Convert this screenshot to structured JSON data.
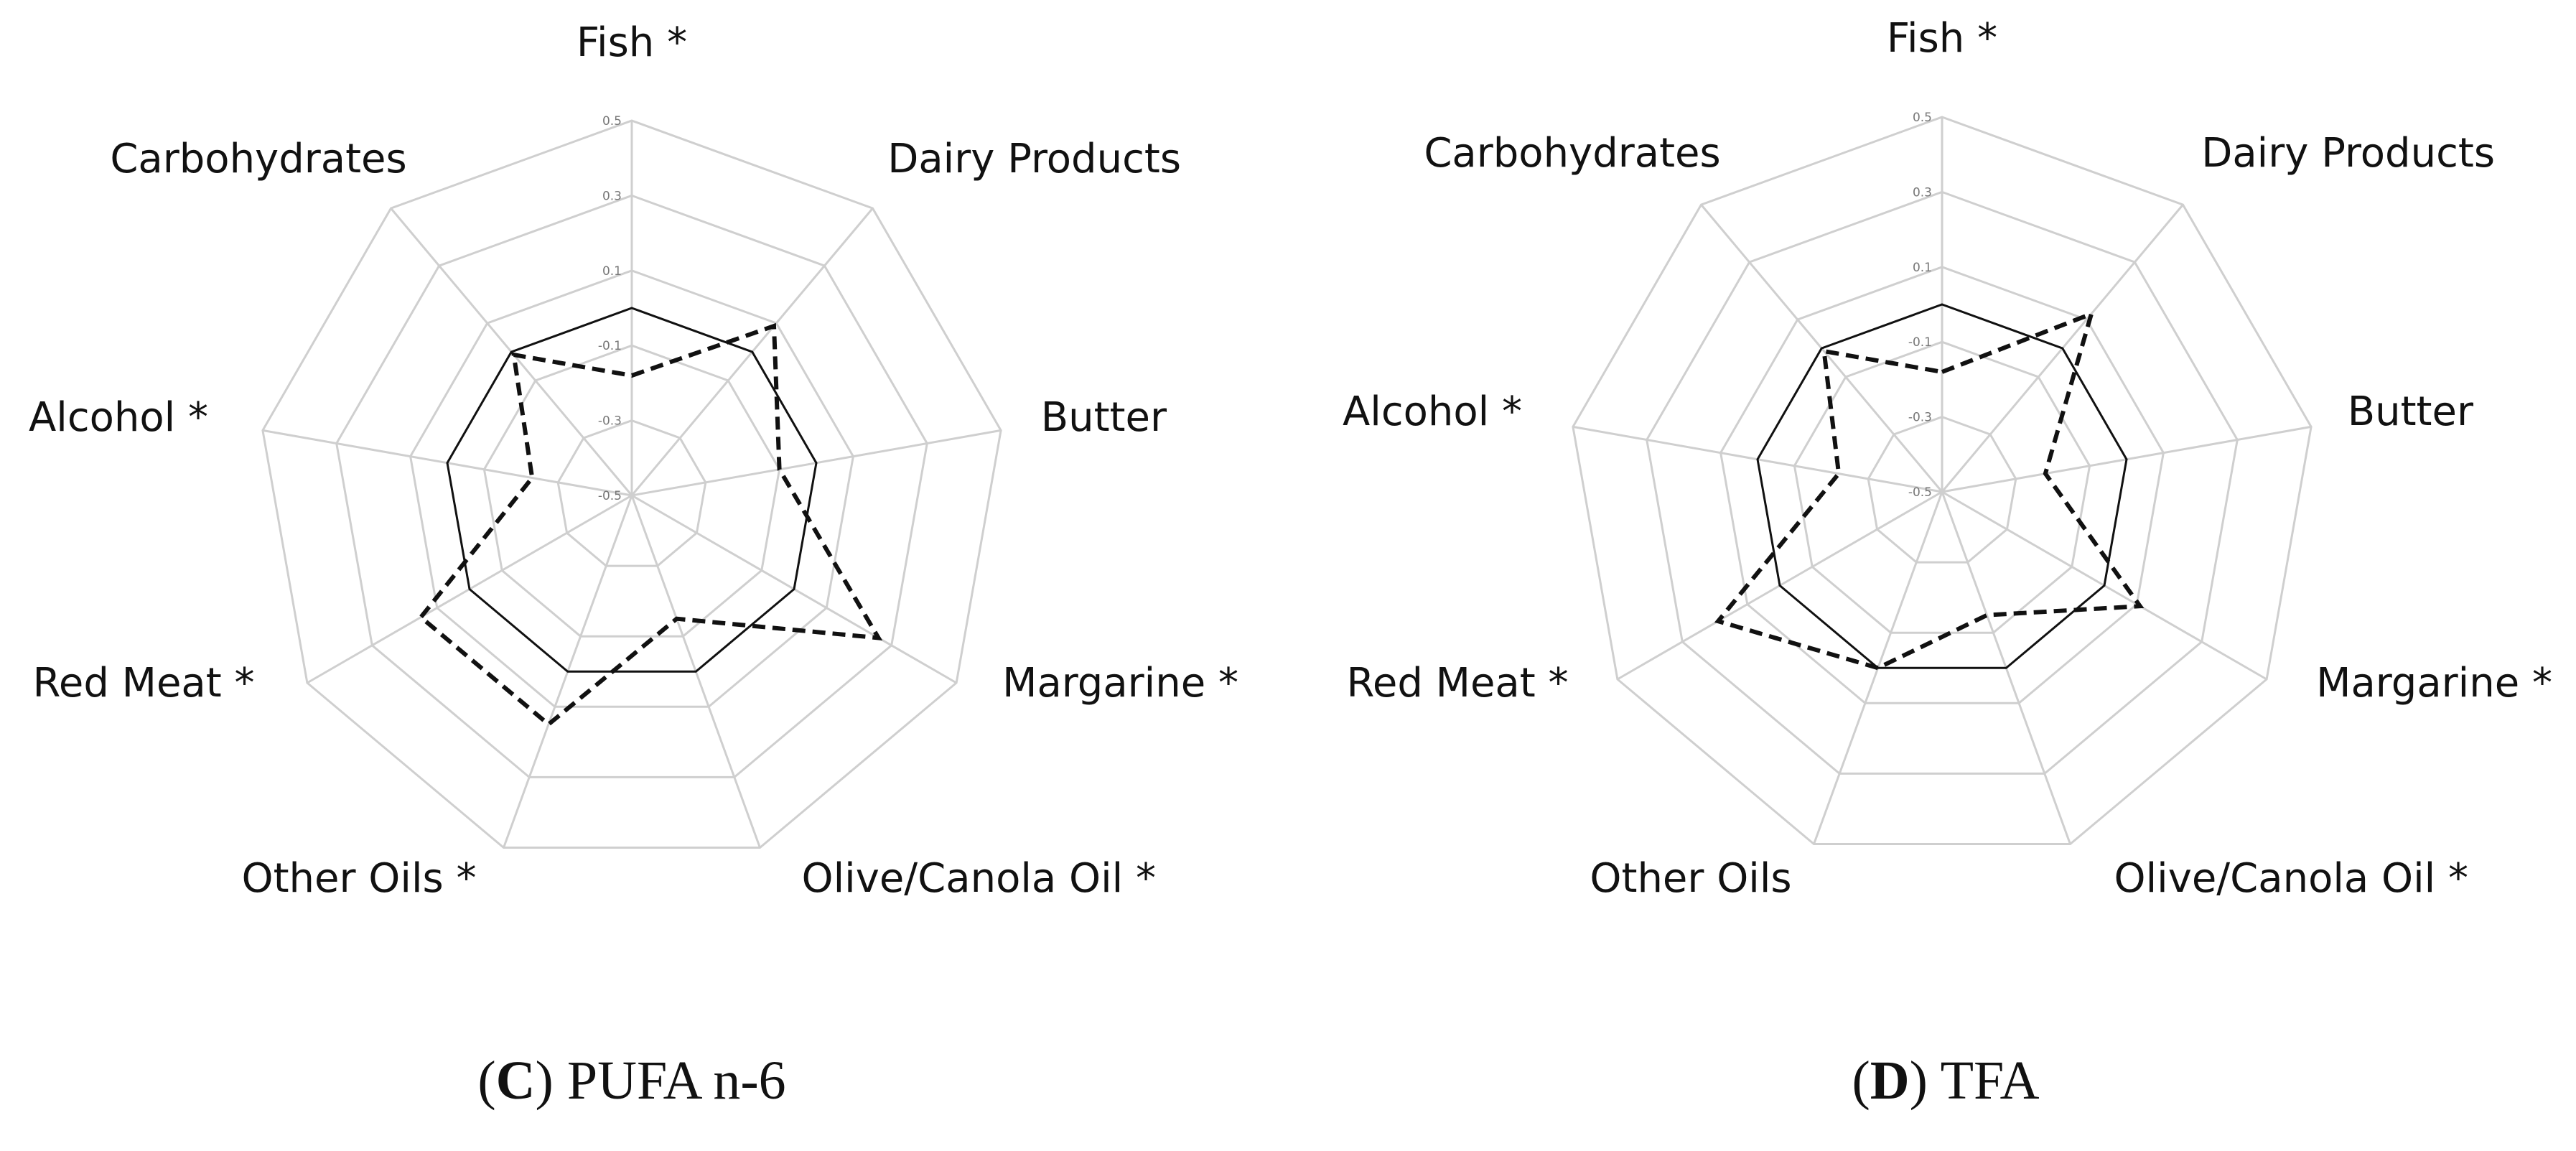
{
  "chart_data": [
    {
      "type": "radar",
      "panel_letter": "C",
      "panel_title": "PUFA n-6",
      "axes": [
        "Fish *",
        "Dairy Products",
        "Butter",
        "Margarine *",
        "Olive/Canola Oil *",
        "Other Oils *",
        "Red Meat *",
        "Alcohol *",
        "Carbohydrates"
      ],
      "rlim": [
        -0.5,
        0.5
      ],
      "ticks": [
        0.5,
        0.3,
        0.1,
        -0.1,
        -0.3,
        -0.5
      ],
      "tick_labels": [
        "0.5",
        "0.3",
        "0.1",
        "-0.1",
        "-0.3",
        "-0.5"
      ],
      "grid": true,
      "series": [
        {
          "style": "solid",
          "values": [
            0.0,
            0.0,
            0.0,
            0.0,
            0.0,
            0.0,
            0.0,
            0.0,
            0.0
          ]
        },
        {
          "style": "dashed",
          "values": [
            -0.18,
            0.09,
            -0.1,
            0.26,
            -0.15,
            0.15,
            0.15,
            -0.23,
            -0.01
          ]
        }
      ]
    },
    {
      "type": "radar",
      "panel_letter": "D",
      "panel_title": "TFA",
      "axes": [
        "Fish *",
        "Dairy Products",
        "Butter",
        "Margarine *",
        "Olive/Canola Oil *",
        "Other Oils",
        "Red Meat *",
        "Alcohol *",
        "Carbohydrates"
      ],
      "rlim": [
        -0.5,
        0.5
      ],
      "ticks": [
        0.5,
        0.3,
        0.1,
        -0.1,
        -0.3,
        -0.5
      ],
      "tick_labels": [
        "0.5",
        "0.3",
        "0.1",
        "-0.1",
        "-0.3",
        "-0.5"
      ],
      "grid": true,
      "series": [
        {
          "style": "solid",
          "values": [
            0.0,
            0.0,
            0.0,
            0.0,
            0.0,
            0.0,
            0.0,
            0.0,
            0.0
          ]
        },
        {
          "style": "dashed",
          "values": [
            -0.18,
            0.12,
            -0.22,
            0.11,
            -0.15,
            0.0,
            0.19,
            -0.22,
            -0.01
          ]
        }
      ]
    }
  ]
}
